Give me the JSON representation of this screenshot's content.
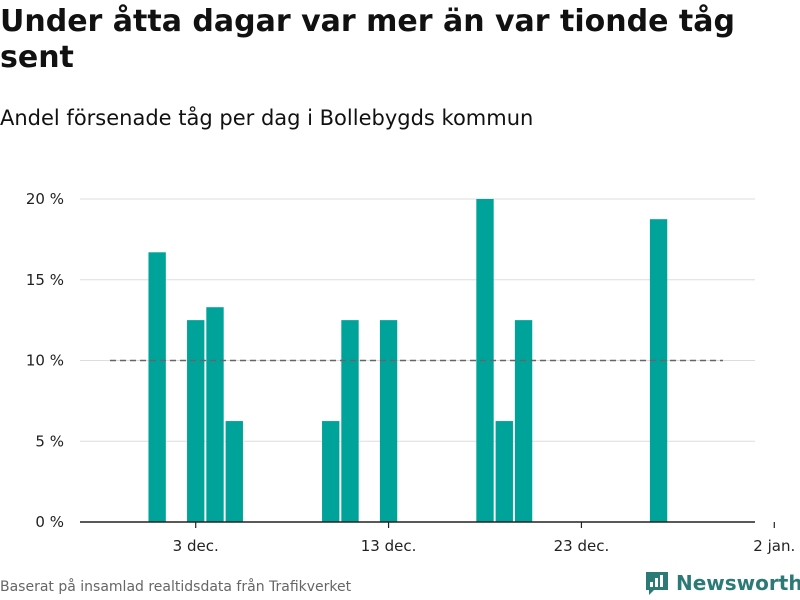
{
  "title": "Under åtta dagar var mer än var tionde tåg sent",
  "subtitle": "Andel försenade tåg per dag i Bollebygds kommun",
  "source": "Baserat på insamlad realtidsdata från Trafikverket",
  "brand": {
    "name": "Newsworthy",
    "icon": "newsworthy-logo-icon",
    "color": "#2c7a78"
  },
  "colors": {
    "bar": "#00a39a",
    "reference": "#666666",
    "grid": "#dddddd",
    "axis": "#222222"
  },
  "chart_data": {
    "type": "bar",
    "x_labels": [
      {
        "date": "2019-12-03",
        "label": "3 dec."
      },
      {
        "date": "2019-12-13",
        "label": "13 dec."
      },
      {
        "date": "2019-12-23",
        "label": "23 dec."
      },
      {
        "date": "2020-01-02",
        "label": "2 jan."
      }
    ],
    "y_ticks": [
      {
        "value": 0,
        "label": "0 %"
      },
      {
        "value": 5,
        "label": "5 %"
      },
      {
        "value": 10,
        "label": "10 %"
      },
      {
        "value": 15,
        "label": "15 %"
      },
      {
        "value": 20,
        "label": "20 %"
      }
    ],
    "ylim": [
      0,
      20
    ],
    "xlim": [
      "2019-11-27",
      "2020-01-01"
    ],
    "unit": "%",
    "grid": true,
    "reference_line": {
      "value": 10,
      "style": "dashed"
    },
    "values": [
      {
        "date": "2019-12-01",
        "value": 16.7
      },
      {
        "date": "2019-12-03",
        "value": 12.5
      },
      {
        "date": "2019-12-04",
        "value": 13.3
      },
      {
        "date": "2019-12-05",
        "value": 6.25
      },
      {
        "date": "2019-12-10",
        "value": 6.25
      },
      {
        "date": "2019-12-11",
        "value": 12.5
      },
      {
        "date": "2019-12-13",
        "value": 12.5
      },
      {
        "date": "2019-12-18",
        "value": 20.0
      },
      {
        "date": "2019-12-19",
        "value": 6.25
      },
      {
        "date": "2019-12-20",
        "value": 12.5
      },
      {
        "date": "2019-12-27",
        "value": 18.75
      }
    ]
  }
}
